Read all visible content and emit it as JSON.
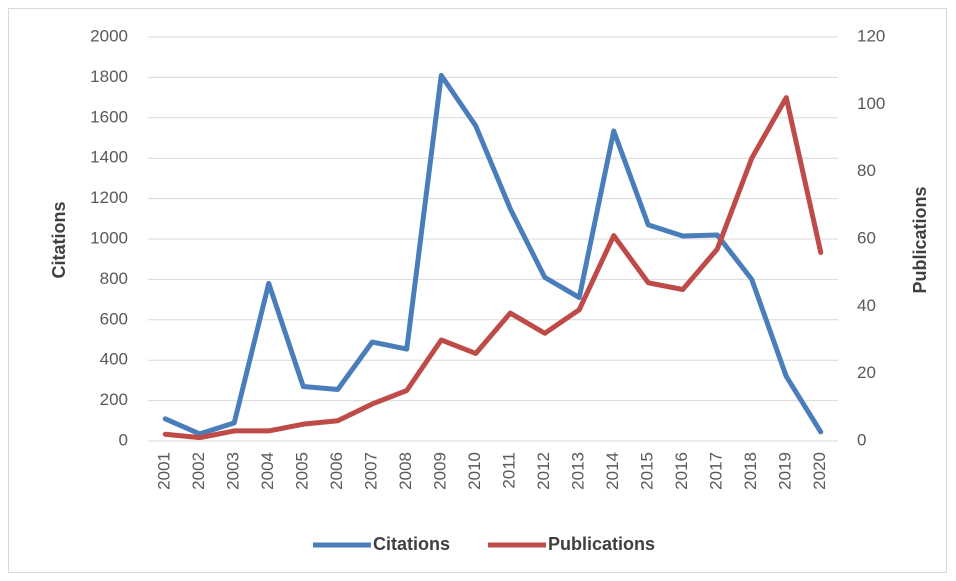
{
  "chart_data": {
    "type": "line",
    "categories": [
      "2001",
      "2002",
      "2003",
      "2004",
      "2005",
      "2006",
      "2007",
      "2008",
      "2009",
      "2010",
      "2011",
      "2012",
      "2013",
      "2014",
      "2015",
      "2016",
      "2017",
      "2018",
      "2019",
      "2020"
    ],
    "y_label": "Citations",
    "y2_label": "Publications",
    "series": [
      {
        "name": "Citations",
        "color": "#4a7ebb",
        "values": [
          110,
          35,
          90,
          780,
          270,
          255,
          490,
          455,
          1810,
          1560,
          1150,
          810,
          710,
          1535,
          1070,
          1015,
          1020,
          800,
          320,
          45
        ]
      },
      {
        "name": "Publications",
        "color": "#be4b48",
        "axis": "y2",
        "values": [
          2,
          1,
          3,
          3,
          5,
          6,
          11,
          15,
          30,
          26,
          38,
          32,
          39,
          61,
          47,
          45,
          57,
          84,
          102,
          56
        ]
      }
    ],
    "ylim": [
      0,
      2000
    ],
    "yticks": [
      0,
      200,
      400,
      600,
      800,
      1000,
      1200,
      1400,
      1600,
      1800,
      2000
    ],
    "y2lim": [
      0,
      120
    ],
    "y2ticks": [
      0,
      20,
      40,
      60,
      80,
      100,
      120
    ],
    "grid": true,
    "legend": "bottom"
  }
}
